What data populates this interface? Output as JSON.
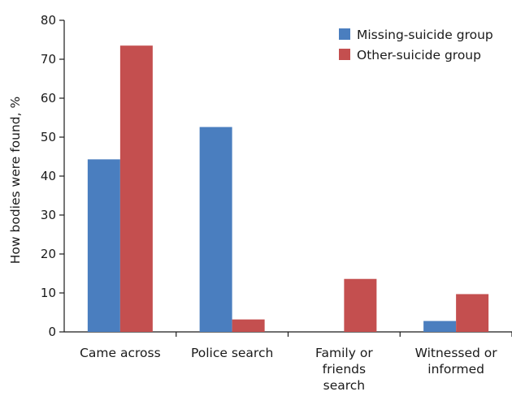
{
  "chart_data": {
    "type": "bar",
    "categories": [
      [
        "Came across"
      ],
      [
        "Police search"
      ],
      [
        "Family or",
        "friends",
        "search"
      ],
      [
        "Witnessed or",
        "informed"
      ]
    ],
    "series": [
      {
        "name": "Missing-suicide group",
        "color": "#4a7ebf",
        "values": [
          44.3,
          52.6,
          0,
          2.8
        ]
      },
      {
        "name": "Other-suicide group",
        "color": "#c44f4f",
        "values": [
          73.5,
          3.2,
          13.6,
          9.7
        ]
      }
    ],
    "ylabel": "How bodies were found, %",
    "xlabel": "",
    "title": "",
    "ylim": [
      0,
      80
    ],
    "yticks": [
      0,
      10,
      20,
      30,
      40,
      50,
      60,
      70,
      80
    ],
    "grid": false,
    "legend": "top-right"
  }
}
